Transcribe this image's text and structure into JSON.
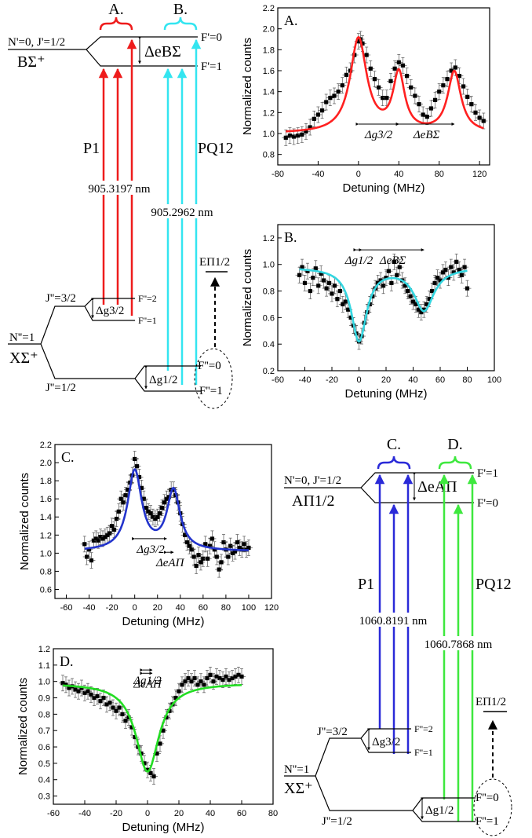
{
  "chart_data": [
    {
      "id": "A",
      "type": "scatter",
      "panel_label": "A.",
      "xlabel": "Detuning (MHz)",
      "ylabel": "Normalized counts",
      "xlim": [
        -80,
        130
      ],
      "ylim": [
        0.7,
        2.2
      ],
      "xticks": [
        -80,
        -40,
        0,
        40,
        80,
        120
      ],
      "yticks": [
        0.8,
        1.0,
        1.2,
        1.4,
        1.6,
        1.8,
        2.0,
        2.2
      ],
      "tick_decimals": 1,
      "grid": false,
      "fit_color": "#ff2020",
      "fit": {
        "baseline": 1.0,
        "peaks": [
          [
            0,
            0.9,
            20
          ],
          [
            40,
            0.55,
            14
          ],
          [
            95,
            0.58,
            16
          ]
        ]
      },
      "annotations": [
        {
          "text": "Δg3/2",
          "x1": 0,
          "x2": 40,
          "y": 1.09
        },
        {
          "text": "ΔeBΣ",
          "x1": 40,
          "x2": 95,
          "y": 1.09
        }
      ],
      "points": [
        [
          -72,
          0.96
        ],
        [
          -68,
          0.98
        ],
        [
          -64,
          0.97
        ],
        [
          -60,
          0.98
        ],
        [
          -56,
          0.99
        ],
        [
          -52,
          1.02
        ],
        [
          -48,
          1.06
        ],
        [
          -44,
          1.14
        ],
        [
          -40,
          1.18
        ],
        [
          -36,
          1.22
        ],
        [
          -32,
          1.3
        ],
        [
          -28,
          1.34
        ],
        [
          -24,
          1.36
        ],
        [
          -20,
          1.4
        ],
        [
          -16,
          1.46
        ],
        [
          -12,
          1.56
        ],
        [
          -8,
          1.6
        ],
        [
          -4,
          1.75
        ],
        [
          0,
          1.88
        ],
        [
          2,
          1.9
        ],
        [
          4,
          1.86
        ],
        [
          8,
          1.75
        ],
        [
          12,
          1.62
        ],
        [
          16,
          1.52
        ],
        [
          20,
          1.44
        ],
        [
          24,
          1.34
        ],
        [
          28,
          1.34
        ],
        [
          32,
          1.5
        ],
        [
          36,
          1.62
        ],
        [
          40,
          1.68
        ],
        [
          44,
          1.65
        ],
        [
          48,
          1.55
        ],
        [
          52,
          1.44
        ],
        [
          56,
          1.36
        ],
        [
          60,
          1.28
        ],
        [
          64,
          1.18
        ],
        [
          68,
          1.16
        ],
        [
          72,
          1.24
        ],
        [
          76,
          1.32
        ],
        [
          80,
          1.4
        ],
        [
          84,
          1.46
        ],
        [
          88,
          1.52
        ],
        [
          92,
          1.6
        ],
        [
          96,
          1.63
        ],
        [
          100,
          1.55
        ],
        [
          104,
          1.45
        ],
        [
          108,
          1.35
        ],
        [
          112,
          1.28
        ],
        [
          116,
          1.2
        ],
        [
          120,
          1.15
        ],
        [
          124,
          1.12
        ]
      ]
    },
    {
      "id": "B",
      "type": "scatter",
      "panel_label": "B.",
      "xlabel": "Detuning (MHz)",
      "ylabel": "Normalized counts",
      "xlim": [
        -60,
        100
      ],
      "ylim": [
        0.2,
        1.3
      ],
      "xticks": [
        -60,
        -40,
        -20,
        0,
        20,
        40,
        60,
        80,
        100
      ],
      "yticks": [
        0.2,
        0.4,
        0.6,
        0.8,
        1.0,
        1.2
      ],
      "tick_decimals": 1,
      "grid": false,
      "fit_color": "#33d6e0",
      "fit": {
        "baseline": 0.98,
        "peaks": [
          [
            0,
            -0.55,
            14
          ],
          [
            48,
            -0.32,
            18
          ]
        ]
      },
      "annotations": [
        {
          "text": "Δg1/2",
          "x1": -2,
          "x2": 2,
          "y": 1.11
        },
        {
          "text": "ΔeBΣ",
          "x1": 2,
          "x2": 48,
          "y": 1.11
        }
      ],
      "points": [
        [
          -44,
          0.92
        ],
        [
          -42,
          0.98
        ],
        [
          -40,
          0.86
        ],
        [
          -38,
          0.95
        ],
        [
          -36,
          0.8
        ],
        [
          -34,
          0.9
        ],
        [
          -32,
          0.97
        ],
        [
          -30,
          0.84
        ],
        [
          -28,
          0.93
        ],
        [
          -26,
          0.88
        ],
        [
          -24,
          0.82
        ],
        [
          -22,
          0.86
        ],
        [
          -20,
          0.78
        ],
        [
          -18,
          0.84
        ],
        [
          -16,
          0.74
        ],
        [
          -14,
          0.8
        ],
        [
          -12,
          0.7
        ],
        [
          -10,
          0.72
        ],
        [
          -8,
          0.66
        ],
        [
          -6,
          0.6
        ],
        [
          -4,
          0.54
        ],
        [
          -2,
          0.48
        ],
        [
          0,
          0.42
        ],
        [
          2,
          0.46
        ],
        [
          4,
          0.56
        ],
        [
          6,
          0.64
        ],
        [
          8,
          0.7
        ],
        [
          10,
          0.76
        ],
        [
          12,
          0.82
        ],
        [
          14,
          0.86
        ],
        [
          16,
          0.88
        ],
        [
          18,
          0.84
        ],
        [
          20,
          0.9
        ],
        [
          22,
          0.95
        ],
        [
          24,
          0.86
        ],
        [
          26,
          1.02
        ],
        [
          28,
          0.92
        ],
        [
          30,
          0.98
        ],
        [
          32,
          0.88
        ],
        [
          34,
          0.84
        ],
        [
          36,
          0.8
        ],
        [
          38,
          0.76
        ],
        [
          40,
          0.72
        ],
        [
          42,
          0.7
        ],
        [
          44,
          0.66
        ],
        [
          46,
          0.64
        ],
        [
          48,
          0.66
        ],
        [
          50,
          0.7
        ],
        [
          52,
          0.74
        ],
        [
          54,
          0.8
        ],
        [
          56,
          0.86
        ],
        [
          58,
          0.9
        ],
        [
          60,
          0.88
        ],
        [
          62,
          0.94
        ],
        [
          64,
          0.96
        ],
        [
          66,
          0.9
        ],
        [
          68,
          0.98
        ],
        [
          70,
          0.94
        ],
        [
          72,
          1.02
        ],
        [
          74,
          0.96
        ],
        [
          76,
          0.92
        ],
        [
          78,
          0.98
        ],
        [
          80,
          0.82
        ]
      ]
    },
    {
      "id": "C",
      "type": "scatter",
      "panel_label": "C.",
      "xlabel": "Detuning (MHz)",
      "ylabel": "Normalized counts",
      "xlim": [
        -70,
        120
      ],
      "ylim": [
        0.5,
        2.2
      ],
      "xticks": [
        -60,
        -40,
        -20,
        0,
        20,
        40,
        60,
        80,
        100,
        120
      ],
      "yticks": [
        0.6,
        0.8,
        1.0,
        1.2,
        1.4,
        1.6,
        1.8,
        2.0,
        2.2
      ],
      "tick_decimals": 1,
      "grid": false,
      "fit_color": "#2233cc",
      "fit": {
        "baseline": 1.02,
        "peaks": [
          [
            0,
            0.88,
            15
          ],
          [
            34,
            0.66,
            14
          ]
        ]
      },
      "annotations": [
        {
          "text": "Δg3/2",
          "x1": 0,
          "x2": 28,
          "y": 1.16
        },
        {
          "text": "ΔeAΠ",
          "x1": 28,
          "x2": 34,
          "y": 1.01
        }
      ],
      "points": [
        [
          -44,
          1.1
        ],
        [
          -42,
          0.96
        ],
        [
          -40,
          1.04
        ],
        [
          -38,
          0.92
        ],
        [
          -36,
          1.14
        ],
        [
          -34,
          1.16
        ],
        [
          -32,
          1.14
        ],
        [
          -30,
          1.18
        ],
        [
          -28,
          1.16
        ],
        [
          -26,
          1.18
        ],
        [
          -24,
          1.2
        ],
        [
          -22,
          1.22
        ],
        [
          -20,
          1.3
        ],
        [
          -18,
          1.26
        ],
        [
          -16,
          1.38
        ],
        [
          -14,
          1.46
        ],
        [
          -12,
          1.6
        ],
        [
          -10,
          1.56
        ],
        [
          -8,
          1.64
        ],
        [
          -6,
          1.7
        ],
        [
          -4,
          1.78
        ],
        [
          -2,
          1.86
        ],
        [
          0,
          2.04
        ],
        [
          2,
          1.96
        ],
        [
          4,
          1.84
        ],
        [
          6,
          1.72
        ],
        [
          8,
          1.6
        ],
        [
          10,
          1.5
        ],
        [
          12,
          1.46
        ],
        [
          14,
          1.44
        ],
        [
          16,
          1.4
        ],
        [
          18,
          1.38
        ],
        [
          20,
          1.4
        ],
        [
          22,
          1.44
        ],
        [
          24,
          1.5
        ],
        [
          26,
          1.56
        ],
        [
          28,
          1.6
        ],
        [
          30,
          1.62
        ],
        [
          32,
          1.7
        ],
        [
          34,
          1.7
        ],
        [
          36,
          1.64
        ],
        [
          38,
          1.56
        ],
        [
          40,
          1.44
        ],
        [
          42,
          1.32
        ],
        [
          44,
          1.2
        ],
        [
          46,
          1.12
        ],
        [
          48,
          1.08
        ],
        [
          50,
          1.04
        ],
        [
          52,
          0.96
        ],
        [
          54,
          0.86
        ],
        [
          56,
          0.98
        ],
        [
          58,
          0.9
        ],
        [
          60,
          0.94
        ],
        [
          62,
          1.1
        ],
        [
          64,
          0.94
        ],
        [
          66,
          1.08
        ],
        [
          68,
          1.16
        ],
        [
          70,
          1.04
        ],
        [
          72,
          0.96
        ],
        [
          74,
          0.82
        ],
        [
          76,
          0.9
        ],
        [
          78,
          1.12
        ],
        [
          80,
          1.04
        ],
        [
          82,
          0.96
        ],
        [
          84,
          1.08
        ],
        [
          86,
          1.0
        ],
        [
          88,
          1.02
        ],
        [
          90,
          1.12
        ],
        [
          92,
          1.06
        ],
        [
          94,
          1.04
        ],
        [
          96,
          1.1
        ],
        [
          98,
          1.04
        ],
        [
          100,
          1.06
        ]
      ]
    },
    {
      "id": "D",
      "type": "scatter",
      "panel_label": "D.",
      "xlabel": "Detuning (MHz)",
      "ylabel": "Normalized counts",
      "xlim": [
        -60,
        80
      ],
      "ylim": [
        0.25,
        1.2
      ],
      "xticks": [
        -60,
        -40,
        -20,
        0,
        20,
        40,
        60,
        80
      ],
      "yticks": [
        0.3,
        0.4,
        0.5,
        0.6,
        0.7,
        0.8,
        0.9,
        1.0,
        1.1,
        1.2
      ],
      "tick_decimals": 1,
      "grid": false,
      "fit_color": "#22dd22",
      "fit": {
        "baseline": 0.99,
        "peaks": [
          [
            0,
            -0.54,
            18
          ]
        ]
      },
      "annotations": [
        {
          "text": "Δg1/2",
          "x1": -3,
          "x2": 3,
          "y": 1.07
        },
        {
          "text": "ΔeAΠ",
          "x1": -3,
          "x2": 3,
          "y": 1.05
        }
      ],
      "points": [
        [
          -54,
          0.99
        ],
        [
          -52,
          0.98
        ],
        [
          -50,
          0.96
        ],
        [
          -48,
          0.97
        ],
        [
          -46,
          0.95
        ],
        [
          -44,
          0.94
        ],
        [
          -42,
          0.96
        ],
        [
          -40,
          0.93
        ],
        [
          -38,
          0.94
        ],
        [
          -36,
          0.92
        ],
        [
          -34,
          0.9
        ],
        [
          -32,
          0.91
        ],
        [
          -30,
          0.88
        ],
        [
          -28,
          0.9
        ],
        [
          -26,
          0.86
        ],
        [
          -24,
          0.87
        ],
        [
          -22,
          0.84
        ],
        [
          -20,
          0.82
        ],
        [
          -18,
          0.84
        ],
        [
          -16,
          0.8
        ],
        [
          -14,
          0.76
        ],
        [
          -12,
          0.78
        ],
        [
          -10,
          0.72
        ],
        [
          -8,
          0.66
        ],
        [
          -6,
          0.6
        ],
        [
          -4,
          0.56
        ],
        [
          -2,
          0.5
        ],
        [
          0,
          0.46
        ],
        [
          2,
          0.44
        ],
        [
          4,
          0.42
        ],
        [
          6,
          0.56
        ],
        [
          8,
          0.62
        ],
        [
          10,
          0.7
        ],
        [
          12,
          0.78
        ],
        [
          14,
          0.82
        ],
        [
          16,
          0.86
        ],
        [
          18,
          0.9
        ],
        [
          20,
          0.94
        ],
        [
          22,
          0.98
        ],
        [
          24,
          1.0
        ],
        [
          26,
          1.02
        ],
        [
          28,
          1.0
        ],
        [
          30,
          1.02
        ],
        [
          32,
          0.98
        ],
        [
          34,
          1.0
        ],
        [
          36,
          0.98
        ],
        [
          38,
          1.02
        ],
        [
          40,
          1.04
        ],
        [
          42,
          1.0
        ],
        [
          44,
          1.03
        ],
        [
          46,
          1.02
        ],
        [
          48,
          1.01
        ],
        [
          50,
          1.03
        ],
        [
          52,
          1.01
        ],
        [
          54,
          1.02
        ],
        [
          56,
          1.03
        ],
        [
          58,
          1.04
        ],
        [
          60,
          1.03
        ]
      ]
    }
  ],
  "diagrams": {
    "top": {
      "group_a": "A.",
      "group_b": "B.",
      "upper_state_quantum": "N'=0, J'=1/2",
      "upper_state": "BΣ⁺",
      "upper_f0": "F'=0",
      "upper_f1": "F'=1",
      "delta_e": "ΔeBΣ",
      "branch_left": "P1",
      "branch_right": "PQ12",
      "wavelength_left": "905.3197 nm",
      "wavelength_right": "905.2962 nm",
      "j32": "J''=3/2",
      "f2": "F''=2",
      "f1": "F''=1",
      "delta_g32": "Δg3/2",
      "n1": "N''=1",
      "ground_state": "XΣ⁺",
      "j12": "J''=1/2",
      "delta_g12": "Δg1/2",
      "f0_low": "F''=0",
      "f1_low": "F''=1",
      "e_state": "EΠ1/2",
      "color_left": "#ee1c1c",
      "color_right": "#33e5f0"
    },
    "bottom": {
      "group_c": "C.",
      "group_d": "D.",
      "upper_state_quantum": "N'=0, J'=1/2",
      "upper_state": "AΠ1/2",
      "upper_f1": "F'=1",
      "upper_f0": "F'=0",
      "delta_e": "ΔeAΠ",
      "branch_left": "P1",
      "branch_right": "PQ12",
      "wavelength_left": "1060.8191 nm",
      "wavelength_right": "1060.7868 nm",
      "j32": "J''=3/2",
      "f2": "F''=2",
      "f1": "F''=1",
      "delta_g32": "Δg3/2",
      "n1": "N''=1",
      "ground_state": "XΣ⁺",
      "j12": "J''=1/2",
      "delta_g12": "Δg1/2",
      "f0_low": "F''=0",
      "f1_low": "F''=1",
      "e_state": "EΠ1/2",
      "color_left": "#2a2ad8",
      "color_right": "#3ee83e"
    }
  }
}
